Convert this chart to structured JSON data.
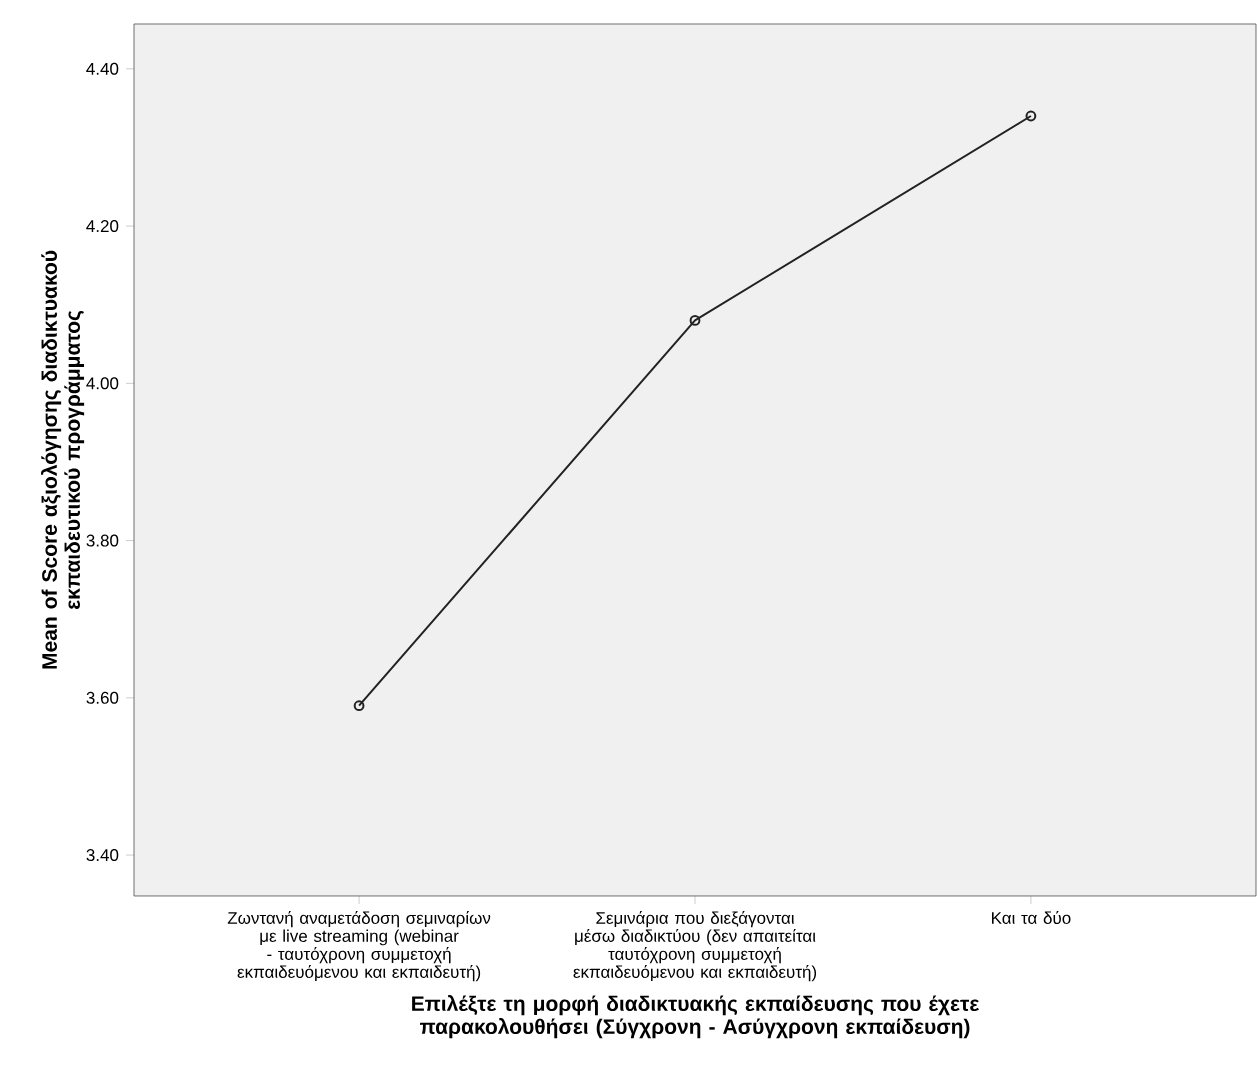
{
  "chart_data": {
    "type": "line",
    "xlabel": "Επιλέξτε τη μορφή διαδικτυακής εκπαίδευσης που έχετε παρακολουθήσει (Σύγχρονη - Ασύγχρονη εκπαίδευση)",
    "ylabel": "Mean of Score αξιολόγησης διαδικτυακού εκπαιδευτικού προγράμματος",
    "categories": [
      "Ζωντανή αναμετάδοση σεμιναρίων με live streaming (webinar - ταυτόχρονη συμμετοχή εκπαιδευόμενου και εκπαιδευτή)",
      "Σεμινάρια που διεξάγονται μέσω διαδικτύου (δεν απαιτείται ταυτόχρονη συμμετοχή εκπαιδευόμενου και εκπαιδευτή)",
      "Και τα δύο"
    ],
    "values": [
      3.59,
      4.08,
      4.34
    ],
    "color": "#222222",
    "marker": "circle",
    "line_style": "solid",
    "ylim": [
      3.348,
      4.457
    ],
    "yticks": [
      {
        "value": 3.4,
        "label": "3.40"
      },
      {
        "value": 3.6,
        "label": "3.60"
      },
      {
        "value": 3.8,
        "label": "3.80"
      },
      {
        "value": 4.0,
        "label": "4.00"
      },
      {
        "value": 4.2,
        "label": "4.20"
      },
      {
        "value": 4.4,
        "label": "4.40"
      }
    ],
    "grid": false
  }
}
